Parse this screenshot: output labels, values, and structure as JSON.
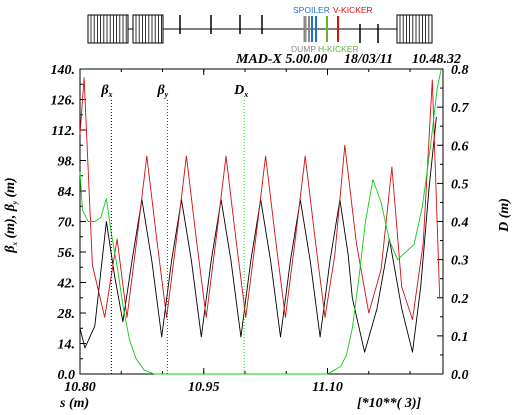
{
  "header": {
    "program": "MAD-X 5.00.00",
    "date": "18/03/11",
    "time": "10.48.32"
  },
  "element_labels": [
    {
      "text": "SPOILER",
      "color": "#1f6fd0"
    },
    {
      "text": "V-KICKER",
      "color": "#e01010"
    },
    {
      "text": "DUMP",
      "color": "#8a8a8a"
    },
    {
      "text": "H-KICKER",
      "color": "#59b82a"
    }
  ],
  "chart_data": {
    "type": "line",
    "xlabel": "s (m)",
    "x_scale_note": "[*10**( 3)]",
    "ylabel_left_parts": [
      "β",
      " (m), β",
      " (m)"
    ],
    "ylabel_right": "D (m)",
    "x_range": [
      10.8,
      11.24
    ],
    "y_left_range": [
      0,
      140
    ],
    "y_right_range": [
      0,
      0.8
    ],
    "x_ticks": [
      "10.80",
      "10.95",
      "11.10"
    ],
    "x_tick_values": [
      10.8,
      10.95,
      11.1
    ],
    "y_left_ticks": [
      "0.0",
      "14.",
      "28.",
      "42.",
      "56.",
      "70.",
      "84.",
      "98.",
      "112.",
      "126.",
      "140."
    ],
    "y_right_ticks": [
      "0.0",
      "0.1",
      "0.2",
      "0.3",
      "0.4",
      "0.5",
      "0.6",
      "0.7",
      "0.8"
    ],
    "legend": [
      {
        "name": "βx",
        "color": "#000000",
        "axis": "left",
        "marker_s": 10.838
      },
      {
        "name": "βy",
        "color": "#d01010",
        "axis": "left",
        "marker_s": 10.906
      },
      {
        "name": "Dx",
        "color": "#11cc11",
        "axis": "right",
        "marker_s": 10.999
      }
    ],
    "series": [
      {
        "name": "βx",
        "color": "#000000",
        "axis": "left",
        "x": [
          10.8,
          10.806,
          10.818,
          10.832,
          10.842,
          10.852,
          10.863,
          10.875,
          10.887,
          10.899,
          10.911,
          10.923,
          10.935,
          10.947,
          10.959,
          10.971,
          10.983,
          10.995,
          11.007,
          11.019,
          11.031,
          11.043,
          11.055,
          11.067,
          11.079,
          11.091,
          11.103,
          11.115,
          11.125,
          11.13,
          11.145,
          11.16,
          11.175,
          11.19,
          11.203,
          11.213,
          11.223,
          11.232
        ],
        "y": [
          21,
          12,
          22,
          70,
          45,
          24,
          52,
          80,
          52,
          17,
          52,
          80,
          52,
          17,
          52,
          80,
          52,
          17,
          52,
          80,
          52,
          17,
          52,
          80,
          52,
          17,
          52,
          80,
          55,
          35,
          10,
          30,
          62,
          30,
          10,
          40,
          85,
          118
        ]
      },
      {
        "name": "βy",
        "color": "#d01010",
        "axis": "left",
        "x": [
          10.8,
          10.805,
          10.815,
          10.83,
          10.845,
          10.857,
          10.869,
          10.881,
          10.893,
          10.905,
          10.917,
          10.929,
          10.941,
          10.953,
          10.965,
          10.977,
          10.989,
          11.001,
          11.013,
          11.025,
          11.037,
          11.049,
          11.061,
          11.073,
          11.085,
          11.097,
          11.109,
          11.121,
          11.135,
          11.15,
          11.165,
          11.178,
          11.19,
          11.203,
          11.216,
          11.227,
          11.236
        ],
        "y": [
          110,
          136,
          50,
          26,
          62,
          26,
          62,
          100,
          62,
          26,
          62,
          100,
          62,
          26,
          62,
          100,
          62,
          26,
          62,
          100,
          62,
          26,
          62,
          100,
          62,
          26,
          55,
          105,
          60,
          28,
          48,
          95,
          40,
          25,
          60,
          135,
          35
        ]
      },
      {
        "name": "Dx",
        "color": "#11cc11",
        "axis": "right",
        "x": [
          10.8,
          10.803,
          10.81,
          10.818,
          10.825,
          10.832,
          10.838,
          10.846,
          10.852,
          10.86,
          10.868,
          10.878,
          10.89,
          10.9,
          11.09,
          11.1,
          11.108,
          11.116,
          11.123,
          11.13,
          11.138,
          11.146,
          11.155,
          11.165,
          11.175,
          11.185,
          11.195,
          11.205,
          11.215,
          11.225,
          11.233,
          11.238
        ],
        "y": [
          0.53,
          0.43,
          0.4,
          0.4,
          0.41,
          0.46,
          0.37,
          0.27,
          0.18,
          0.09,
          0.04,
          0.01,
          0.0,
          0.0,
          0.0,
          0.0,
          0.01,
          0.02,
          0.05,
          0.12,
          0.25,
          0.4,
          0.51,
          0.45,
          0.35,
          0.3,
          0.32,
          0.34,
          0.44,
          0.6,
          0.75,
          0.8
        ]
      }
    ]
  }
}
